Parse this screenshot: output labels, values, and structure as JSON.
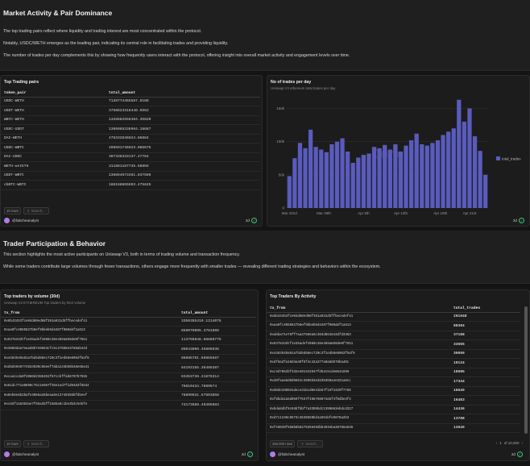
{
  "section1": {
    "title": "Market Activity & Pair Dominance",
    "paragraphs": [
      "The top trading pairs reflect where liquidity and trading interest are most concentrated within the protocol.",
      "Notably, USDC/WETH emerges as the leading pair, indicating its central role in facilitating trades and providing liquidity.",
      "The number of trades per day complements this by showing how frequently users interact with the protocol, offering insight into overall market activity and engagement levels over time."
    ]
  },
  "pairs_card": {
    "title": "Top Trading pairs",
    "columns": [
      "token_pair",
      "total_amount"
    ],
    "rows": [
      [
        "USDC-WETH",
        "7138774465587.6188"
      ],
      [
        "USDT-WETH",
        "3758823318448.5562"
      ],
      [
        "WBTC-WETH",
        "1328682556384.35820"
      ],
      [
        "USDC-USDT",
        "1386065338964.18687"
      ],
      [
        "DAI-WETH",
        "478332846824.86884"
      ],
      [
        "USDC-WBTC",
        "498591746923.985675"
      ],
      [
        "DAI-USDC",
        "387336333137.47784"
      ],
      [
        "WETH-wstETH",
        "311881187735.58855"
      ],
      [
        "USDT-WBTC",
        "236864573461.837586"
      ],
      [
        "cbBTC-WBTC",
        "188168865603.475845"
      ]
    ],
    "rows_count": "10 rows",
    "search_placeholder": "Search...",
    "author": "@fabcheanalyst",
    "age": "2d"
  },
  "chart_card": {
    "title": "No of trades per day",
    "subtitle": "Uniswap V3 ethereum total trades per day"
  },
  "chart_data": {
    "type": "bar",
    "title": "No of trades per day",
    "y_ticks": [
      "150k",
      "100k",
      "50k",
      "0"
    ],
    "x_ticks": [
      "Mar 22nd",
      "Mar 29th",
      "Apr 5th",
      "Apr 12th",
      "Apr 19th",
      "Apr 21st"
    ],
    "ylim": [
      0,
      170000
    ],
    "series": [
      {
        "name": "total_trades",
        "color": "#5a5bbd",
        "values": [
          48000,
          75000,
          98000,
          90000,
          118000,
          92000,
          88000,
          84000,
          96000,
          100000,
          105000,
          85000,
          68000,
          76000,
          80000,
          82000,
          92000,
          90000,
          95000,
          88000,
          96000,
          85000,
          94000,
          102000,
          112000,
          96000,
          94000,
          98000,
          102000,
          110000,
          115000,
          120000,
          163000,
          130000,
          150000,
          108000,
          86000,
          50000
        ]
      }
    ],
    "legend": "right",
    "watermark": "Dune"
  },
  "section2": {
    "title": "Trader Participation & Behavior",
    "paragraphs": [
      "This section highlights the most active participants on Uniswap V3, both in terms of trading volume and transaction frequency.",
      "While some traders contribute large volumes through fewer transactions, others engage more frequently with smaller trades — revealing different trading strategies and behaviors within the ecosystem."
    ]
  },
  "volume_card": {
    "title": "Top traders by volume (30d)",
    "subtitle": "Uniswap V3 ETHEREUM Top traders by their volume",
    "columns": [
      "tx_from",
      "total_amount"
    ],
    "rows": [
      [
        "0x6b43453fce04d60ed98f391a931d5ffbecedef41",
        "3356355410.1214076"
      ],
      [
        "0xaa0fc4085827b8ef9bbeb5d4487f980abf1a613",
        "858078085.3781808"
      ],
      [
        "0x937833dtf1e35adef4980c38e469a869de0f7551",
        "113795848.88689775"
      ],
      [
        "0x3888daa7eaad8b7e8653cfc5c27888e3788ab44d",
        "85043808.45866936"
      ],
      [
        "0x4483549a91a7bd5d68ec720c3f1ed58e8063f5af8",
        "86685781.68865587"
      ],
      [
        "0xd8d4948774634939c85eef7aba134b65b48e66a41",
        "84193155.36466387"
      ],
      [
        "0xcaa1cda0f4080d2386351f67ccbffab8707b7555",
        "83453738.31878314"
      ],
      [
        "0x81dc771a0890c76c2e057f35e1ed7f1d9483f8834",
        "76610434.7889574"
      ],
      [
        "0x0eb8e8b2bafe3066a36beaa8e13749356bfdbeef",
        "76899631.57803858"
      ],
      [
        "0xc6df1a5363ae7f65a35ff1585a6c1be3b3c5ebfe",
        "74173688.46405883"
      ]
    ],
    "rows_count": "10 rows",
    "search_placeholder": "Search...",
    "author": "@fabcheanalyst",
    "age": "2d"
  },
  "activity_card": {
    "title": "Top Traders By Activity",
    "columns": [
      "tx_from",
      "total_trades"
    ],
    "rows": [
      [
        "0x6b43453fce04d60ed98f391a931d5ffbecedef41",
        "201048"
      ],
      [
        "0xaa0fc4085827b8ef9bbeb5d4487f980abf1a613",
        "88384"
      ],
      [
        "0xabba71e76ff7aa37666a5c383d861643dfd3383",
        "37188"
      ],
      [
        "0x937833dtf1e35adef4980c38e469a869de0f7551",
        "33665"
      ],
      [
        "0x4483549a91a7bd5d68ec720c3f1ed58e8063f5af8",
        "30659"
      ],
      [
        "0xdf6adfa18d4a40f8f4c42a377a0a8d578ba40c",
        "19124"
      ],
      [
        "0xc3d7062bf332e401342947fd54c5cde8641899",
        "18685"
      ],
      [
        "0x38faaa6d8d6681c3685b3ed2d6365a4e321a8cc",
        "17344"
      ],
      [
        "0xd0de330031dece31bcd0e31b57f15f4329f7786",
        "16549"
      ],
      [
        "0xf8bda1a5d059f7537f4b6768674a5f4f8dbe4f4",
        "16483"
      ],
      [
        "0xbda8dbf8c04bf5bf7a3305bdc1399663ebdcd327",
        "14436"
      ],
      [
        "0xd7c1238c8573c3638559bd1a551bfe5678a2b3",
        "13788"
      ],
      [
        "0xfe9039f658b8b827635949dbb493eba38765a536",
        "13649"
      ]
    ],
    "rows_count": "250,000 rows",
    "search_placeholder": "Search...",
    "page_info": "1",
    "page_total": "of 10,000",
    "author": "@fabcheanalyst",
    "age": "2d"
  }
}
